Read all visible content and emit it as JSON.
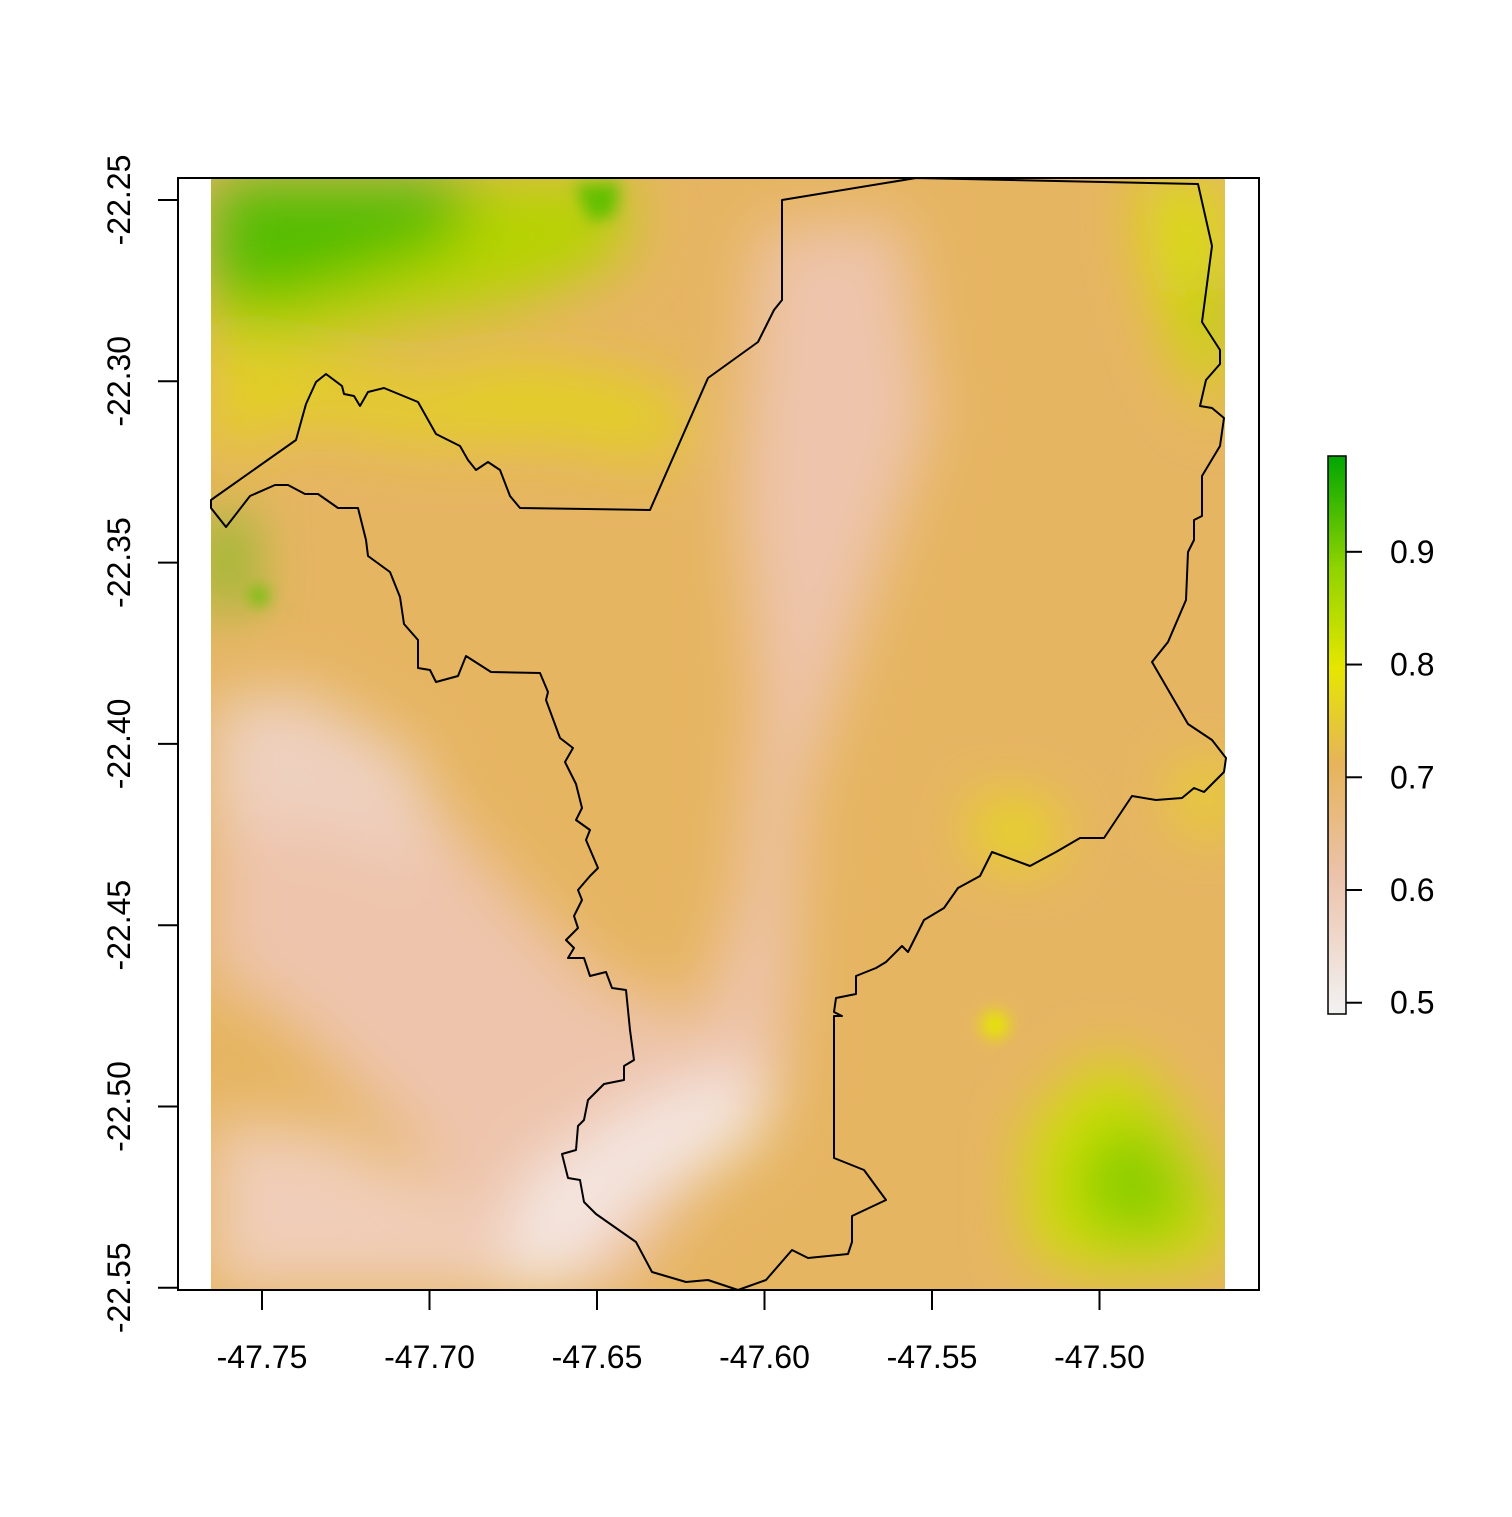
{
  "map": {
    "x_ticks": [
      "-47.75",
      "-47.70",
      "-47.65",
      "-47.60",
      "-47.55",
      "-47.50"
    ],
    "y_ticks": [
      "-22.25",
      "-22.30",
      "-22.35",
      "-22.40",
      "-22.45",
      "-22.50",
      "-22.55"
    ],
    "legend_ticks": [
      "0.9",
      "0.8",
      "0.7",
      "0.6",
      "0.5"
    ],
    "legend_range": [
      0.49,
      0.985
    ],
    "colors": {
      "low": "#f2f2f2",
      "mid_low": "#ebb48f",
      "mid": "#e6b450",
      "high": "#e6e600",
      "top": "#00a600",
      "boundary": "#000000"
    }
  }
}
